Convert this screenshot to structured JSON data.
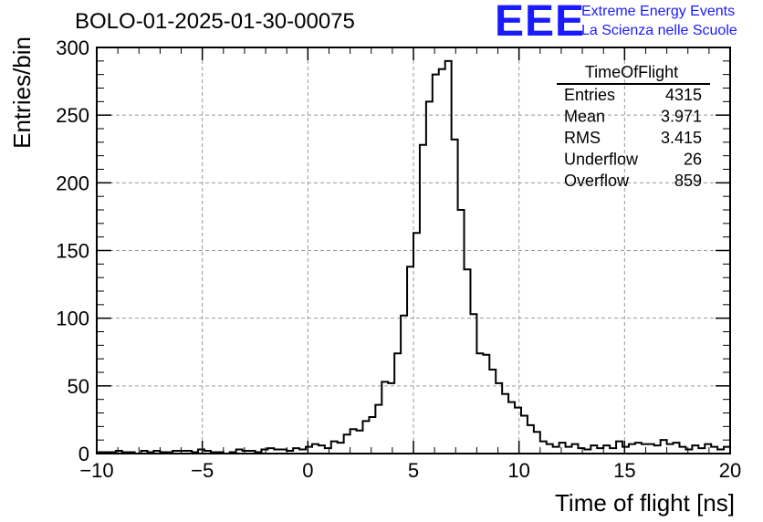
{
  "header": {
    "title": "BOLO-01-2025-01-30-00075",
    "logo_text": "EEE",
    "logo_line1": "Extreme Energy Events",
    "logo_line2": "La Scienza nelle Scuole",
    "logo_color": "#1a1aff"
  },
  "stats": {
    "name": "TimeOfFlight",
    "rows": [
      {
        "label": "Entries",
        "value": "4315"
      },
      {
        "label": "Mean",
        "value": "3.971"
      },
      {
        "label": "RMS",
        "value": "3.415"
      },
      {
        "label": "Underflow",
        "value": "26"
      },
      {
        "label": "Overflow",
        "value": "859"
      }
    ]
  },
  "chart_data": {
    "type": "bar",
    "subtype": "step-histogram",
    "title": "BOLO-01-2025-01-30-00075",
    "xlabel": "Time of flight [ns]",
    "ylabel": "Entries/bin",
    "xlim": [
      -10,
      20
    ],
    "ylim": [
      0,
      300
    ],
    "grid": true,
    "bin_width": 0.3,
    "x_ticks": [
      -10,
      -5,
      0,
      5,
      10,
      15,
      20
    ],
    "x_tick_labels": [
      "−10",
      "−5",
      "0",
      "5",
      "10",
      "15",
      "20"
    ],
    "y_ticks": [
      0,
      50,
      100,
      150,
      200,
      250,
      300
    ],
    "y_tick_labels": [
      "0",
      "50",
      "100",
      "150",
      "200",
      "250",
      "300"
    ],
    "values": [
      1,
      1,
      1,
      2,
      1,
      1,
      0,
      2,
      1,
      2,
      1,
      1,
      2,
      2,
      2,
      1,
      3,
      2,
      1,
      1,
      0,
      1,
      3,
      2,
      2,
      1,
      3,
      4,
      3,
      3,
      2,
      4,
      3,
      5,
      7,
      6,
      4,
      9,
      8,
      14,
      18,
      17,
      24,
      27,
      36,
      53,
      52,
      74,
      102,
      138,
      163,
      228,
      260,
      280,
      284,
      290,
      232,
      180,
      136,
      103,
      74,
      73,
      62,
      52,
      44,
      38,
      34,
      28,
      21,
      16,
      9,
      7,
      5,
      8,
      5,
      7,
      4,
      3,
      6,
      4,
      6,
      4,
      9,
      5,
      7,
      8,
      7,
      7,
      6,
      10,
      7,
      8,
      5,
      3,
      6,
      4,
      7,
      5,
      3,
      5
    ]
  }
}
